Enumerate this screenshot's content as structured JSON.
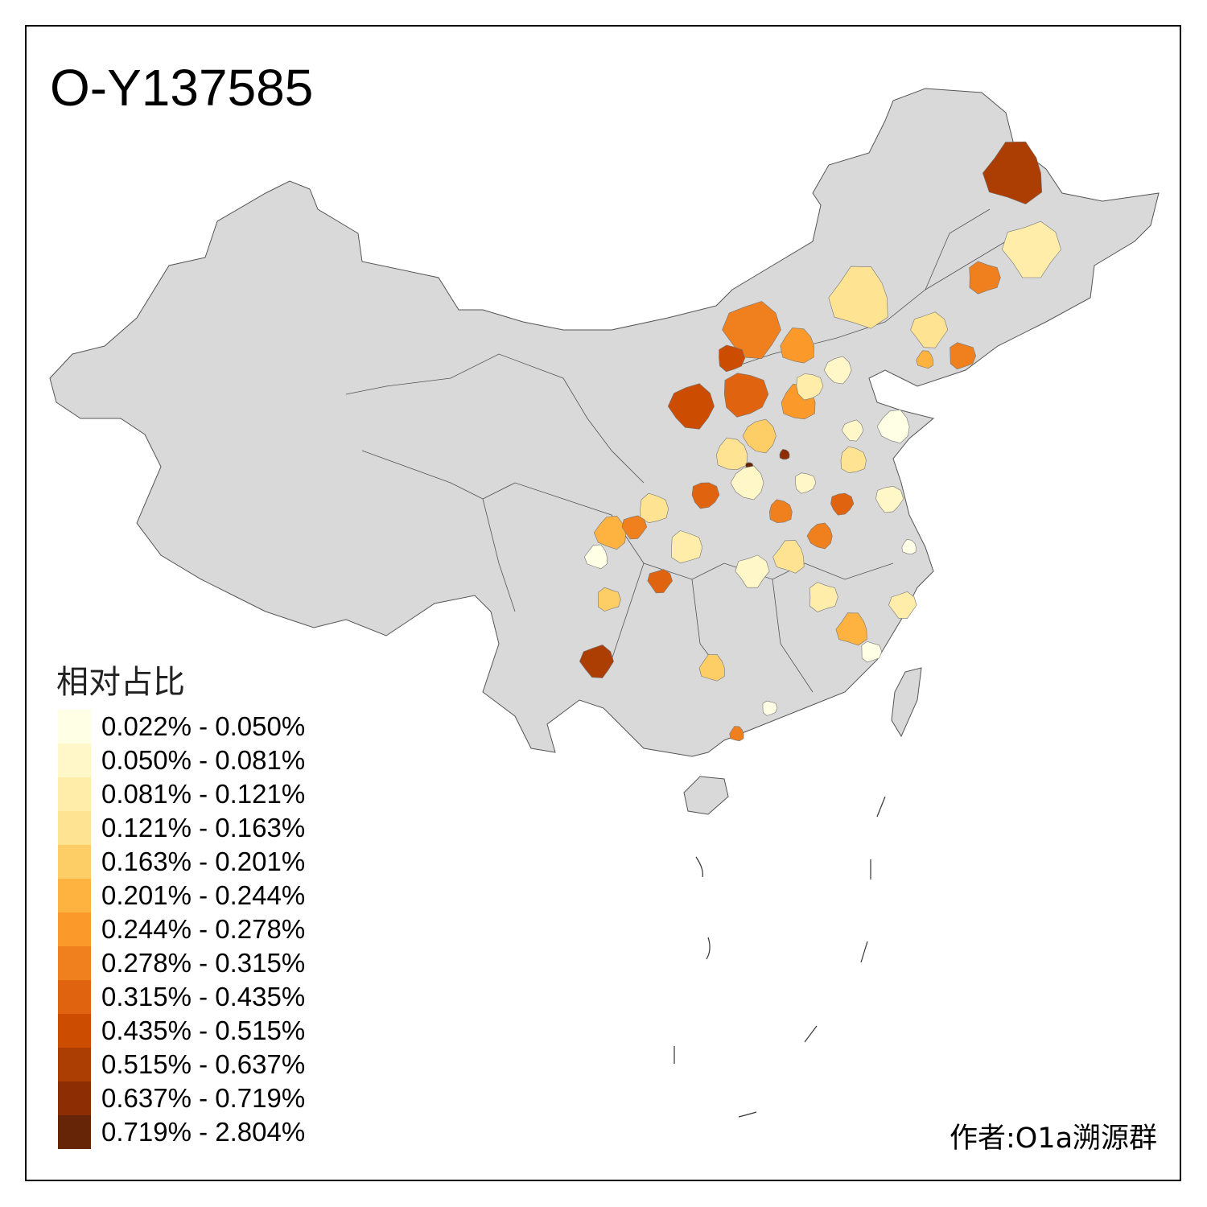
{
  "title": "O-Y137585",
  "legend": {
    "title": "相对占比",
    "items": [
      {
        "label": "0.022% - 0.050%",
        "color": "#FFFFE5"
      },
      {
        "label": "0.050% - 0.081%",
        "color": "#FFF7C8"
      },
      {
        "label": "0.081% - 0.121%",
        "color": "#FFEDA9"
      },
      {
        "label": "0.121% - 0.163%",
        "color": "#FEE392"
      },
      {
        "label": "0.163% - 0.201%",
        "color": "#FECE66"
      },
      {
        "label": "0.201% - 0.244%",
        "color": "#FEB23F"
      },
      {
        "label": "0.244% - 0.278%",
        "color": "#FB9A2A"
      },
      {
        "label": "0.278% - 0.315%",
        "color": "#F07F1E"
      },
      {
        "label": "0.315% - 0.435%",
        "color": "#E0640F"
      },
      {
        "label": "0.435% - 0.515%",
        "color": "#CC4C02"
      },
      {
        "label": "0.515% - 0.637%",
        "color": "#AC3D03"
      },
      {
        "label": "0.637% - 0.719%",
        "color": "#8C2D04"
      },
      {
        "label": "0.719% - 2.804%",
        "color": "#662506"
      }
    ]
  },
  "colors": {
    "no_data": "#D9D9D9",
    "border": "#555555"
  },
  "credit": "作者:O1a溯源群"
}
